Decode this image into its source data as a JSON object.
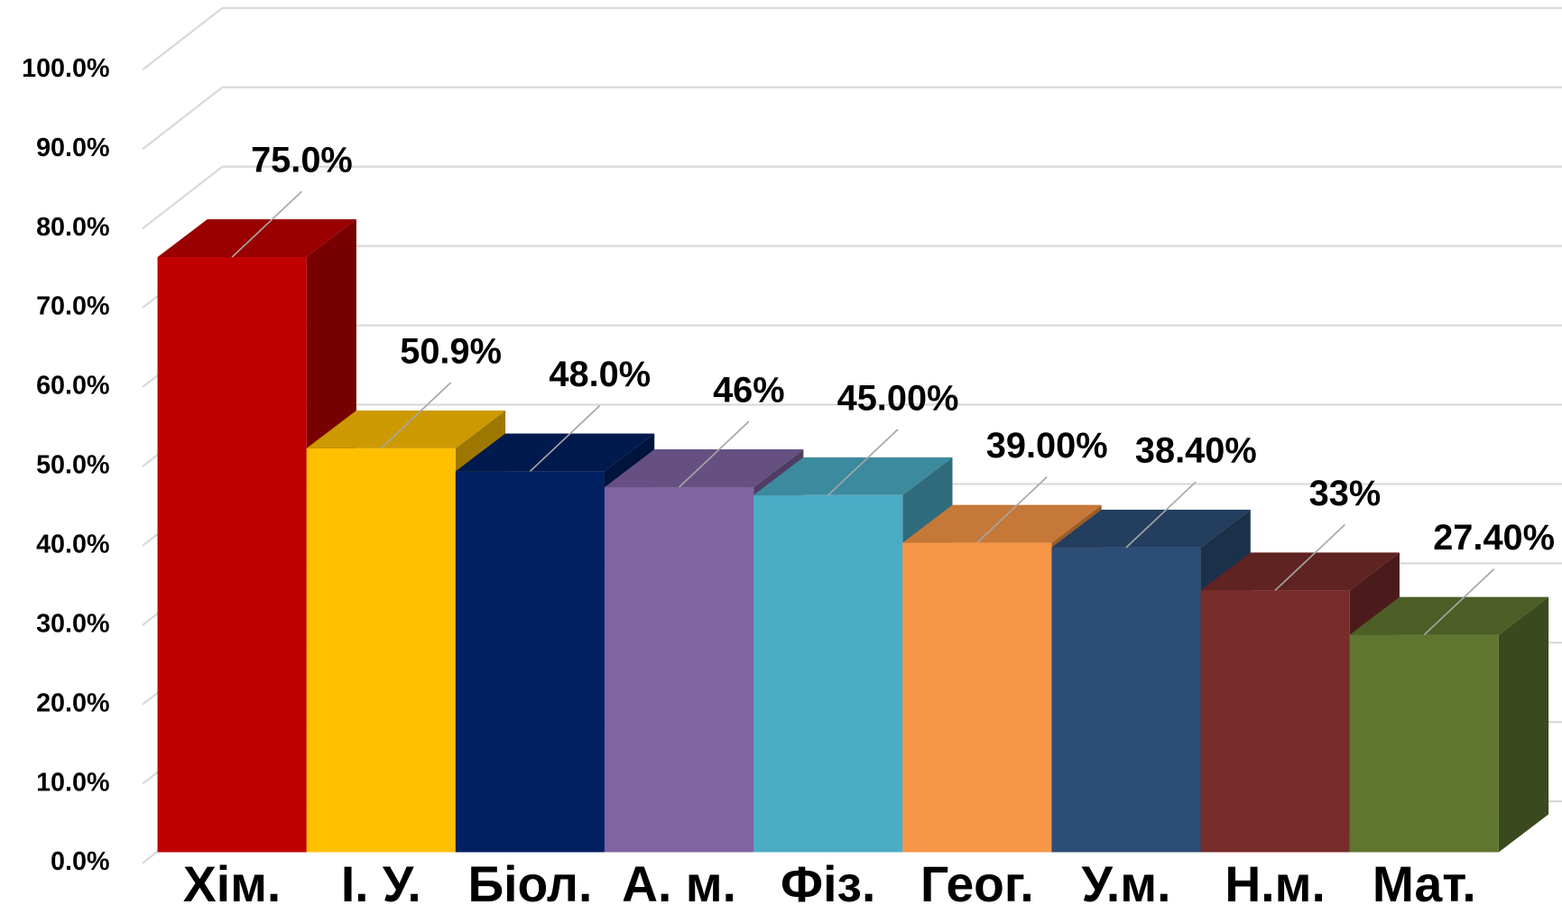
{
  "chart_data": {
    "type": "bar3d",
    "categories": [
      "Хім.",
      "І. У.",
      "Біол.",
      "А. м.",
      "Фіз.",
      "Геог.",
      "У.м.",
      "Н.м.",
      "Мат."
    ],
    "values": [
      75.0,
      50.9,
      48.0,
      46,
      45.0,
      39.0,
      38.4,
      33,
      27.4
    ],
    "value_labels": [
      "75.0%",
      "50.9%",
      "48.0%",
      "46%",
      "45.00%",
      "39.00%",
      "38.40%",
      "33%",
      "27.40%"
    ],
    "colors": [
      "#c00000",
      "#ffc000",
      "#002060",
      "#8064a2",
      "#4bacc6",
      "#f79646",
      "#2c4d75",
      "#772c2a",
      "#5f7530"
    ],
    "ylim": [
      0,
      100
    ],
    "yticks": [
      {
        "value": 0,
        "label": "0.0%"
      },
      {
        "value": 10,
        "label": "10.0%"
      },
      {
        "value": 20,
        "label": "20.0%"
      },
      {
        "value": 30,
        "label": "30.0%"
      },
      {
        "value": 40,
        "label": "40.0%"
      },
      {
        "value": 50,
        "label": "50.0%"
      },
      {
        "value": 60,
        "label": "60.0%"
      },
      {
        "value": 70,
        "label": "70.0%"
      },
      {
        "value": 80,
        "label": "80.0%"
      },
      {
        "value": 90,
        "label": "90.0%"
      },
      {
        "value": 100,
        "label": "100.0%"
      }
    ],
    "grid": true
  }
}
